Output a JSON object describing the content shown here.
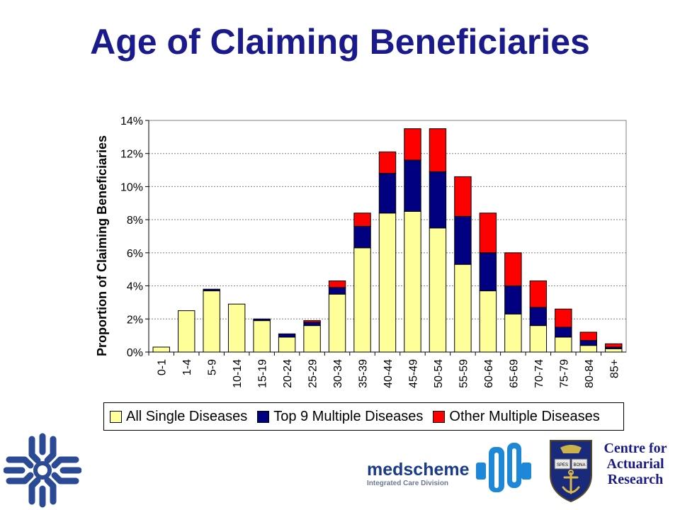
{
  "title": "Age of Claiming Beneficiaries",
  "chart_data": {
    "type": "bar",
    "stacked": true,
    "title": "",
    "xlabel": "",
    "ylabel": "Proportion of Claiming Beneficiaries",
    "ylim": [
      0,
      14
    ],
    "yticks": [
      "0%",
      "2%",
      "4%",
      "6%",
      "8%",
      "10%",
      "12%",
      "14%"
    ],
    "grid": true,
    "legend_position": "bottom",
    "categories": [
      "0-1",
      "1-4",
      "5-9",
      "10-14",
      "15-19",
      "20-24",
      "25-29",
      "30-34",
      "35-39",
      "40-44",
      "45-49",
      "50-54",
      "55-59",
      "60-64",
      "65-69",
      "70-74",
      "75-79",
      "80-84",
      "85+"
    ],
    "series": [
      {
        "name": "All Single Diseases",
        "color": "#ffff99",
        "values": [
          0.3,
          2.5,
          3.7,
          2.9,
          1.9,
          0.9,
          1.6,
          3.5,
          6.3,
          8.4,
          8.5,
          7.5,
          5.3,
          3.7,
          2.3,
          1.6,
          0.9,
          0.4,
          0.2
        ]
      },
      {
        "name": "Top 9 Multiple Diseases",
        "color": "#000080",
        "values": [
          0.0,
          0.0,
          0.1,
          0.0,
          0.1,
          0.2,
          0.2,
          0.4,
          1.3,
          2.4,
          3.1,
          3.4,
          2.9,
          2.3,
          1.7,
          1.1,
          0.6,
          0.3,
          0.1
        ]
      },
      {
        "name": "Other Multiple Diseases",
        "color": "#ff0000",
        "values": [
          0.0,
          0.0,
          0.0,
          0.0,
          0.0,
          0.0,
          0.1,
          0.4,
          0.8,
          1.3,
          1.9,
          2.6,
          2.4,
          2.4,
          2.0,
          1.6,
          1.1,
          0.5,
          0.2
        ]
      }
    ]
  },
  "logos": {
    "medscheme_name": "medscheme",
    "medscheme_division": "Integrated Care Division",
    "car_line1": "Centre for",
    "car_line2": "Actuarial",
    "car_line3": "Research",
    "crest_motto_left": "SPES",
    "crest_motto_right": "BONA"
  }
}
